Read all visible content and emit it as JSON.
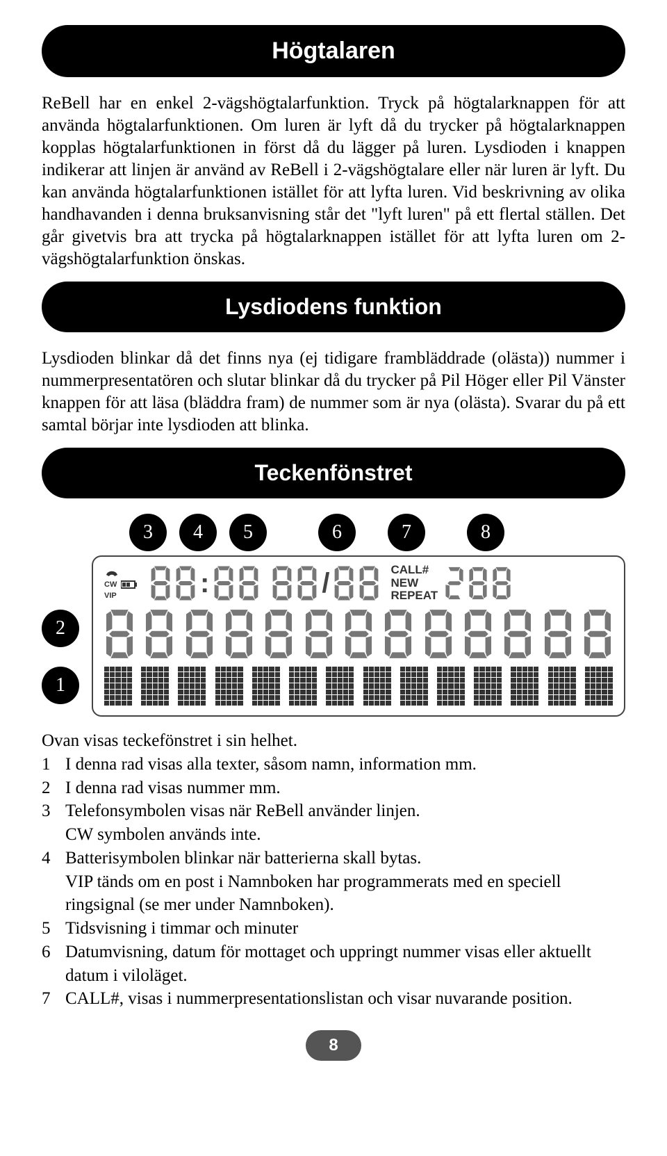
{
  "sections": {
    "speaker": {
      "title": "Högtalaren",
      "body": "ReBell har en enkel 2-vägshögtalarfunktion. Tryck på högtalarknappen för att använda högtalarfunktionen. Om luren är lyft då du trycker på högtalarknappen kopplas högtalarfunktionen in först då du lägger på luren. Lysdioden i knappen indikerar att linjen är använd av ReBell i 2-vägshögtalare eller när luren är lyft. Du kan använda högtalarfunktionen istället för att lyfta luren. Vid beskrivning av olika handhavanden i denna bruksanvisning står det \"lyft luren\" på ett flertal ställen. Det går givetvis bra att trycka på högtalarknappen istället för att lyfta luren om 2-vägshögtalarfunktion önskas."
    },
    "led": {
      "title": "Lysdiodens funktion",
      "body": "Lysdioden blinkar då det finns nya (ej tidigare frambläddrade (olästa)) nummer i nummerpresentatören och slutar blinkar då du trycker på Pil Höger eller Pil Vänster knappen för att läsa (bläddra fram) de nummer som är nya (olästa). Svarar du på ett samtal börjar inte lysdioden att blinka."
    },
    "display": {
      "title": "Teckenfönstret",
      "callouts_top": [
        "3",
        "4",
        "5",
        "6",
        "7",
        "8"
      ],
      "callouts_side": [
        "2",
        "1"
      ],
      "lcd": {
        "icon_cw": "CW",
        "icon_vip": "VIP",
        "status_lines": [
          "CALL#",
          "NEW",
          "REPEAT"
        ],
        "time_placeholder": "88:88",
        "date_placeholder": "88/88",
        "count_placeholder": "288",
        "number_row_digit_count": 13,
        "text_row_char_count": 14
      },
      "legend_intro": "Ovan visas teckefönstret i sin helhet.",
      "legend": [
        {
          "n": "1",
          "text": "I denna rad visas alla texter, såsom namn, information mm."
        },
        {
          "n": "2",
          "text": "I denna rad visas nummer mm."
        },
        {
          "n": "3",
          "text": "Telefonsymbolen visas när ReBell använder linjen.",
          "sub": "CW symbolen används inte."
        },
        {
          "n": "4",
          "text": "Batterisymbolen blinkar när batterierna skall bytas.",
          "sub": "VIP tänds om en post i Namnboken har programmerats med en speciell ringsignal (se mer under Namnboken)."
        },
        {
          "n": "5",
          "text": "Tidsvisning i timmar och minuter"
        },
        {
          "n": "6",
          "text": "Datumvisning, datum för mottaget och uppringt nummer visas eller aktuellt datum i viloläget."
        },
        {
          "n": "7",
          "text": "CALL#, visas i nummerpresentationslistan och visar nuvarande position."
        }
      ]
    }
  },
  "page_number": "8",
  "colors": {
    "pill_bg": "#000000",
    "pill_fg": "#ffffff",
    "pagenum_bg": "#555555",
    "seg_color": "#777777"
  }
}
